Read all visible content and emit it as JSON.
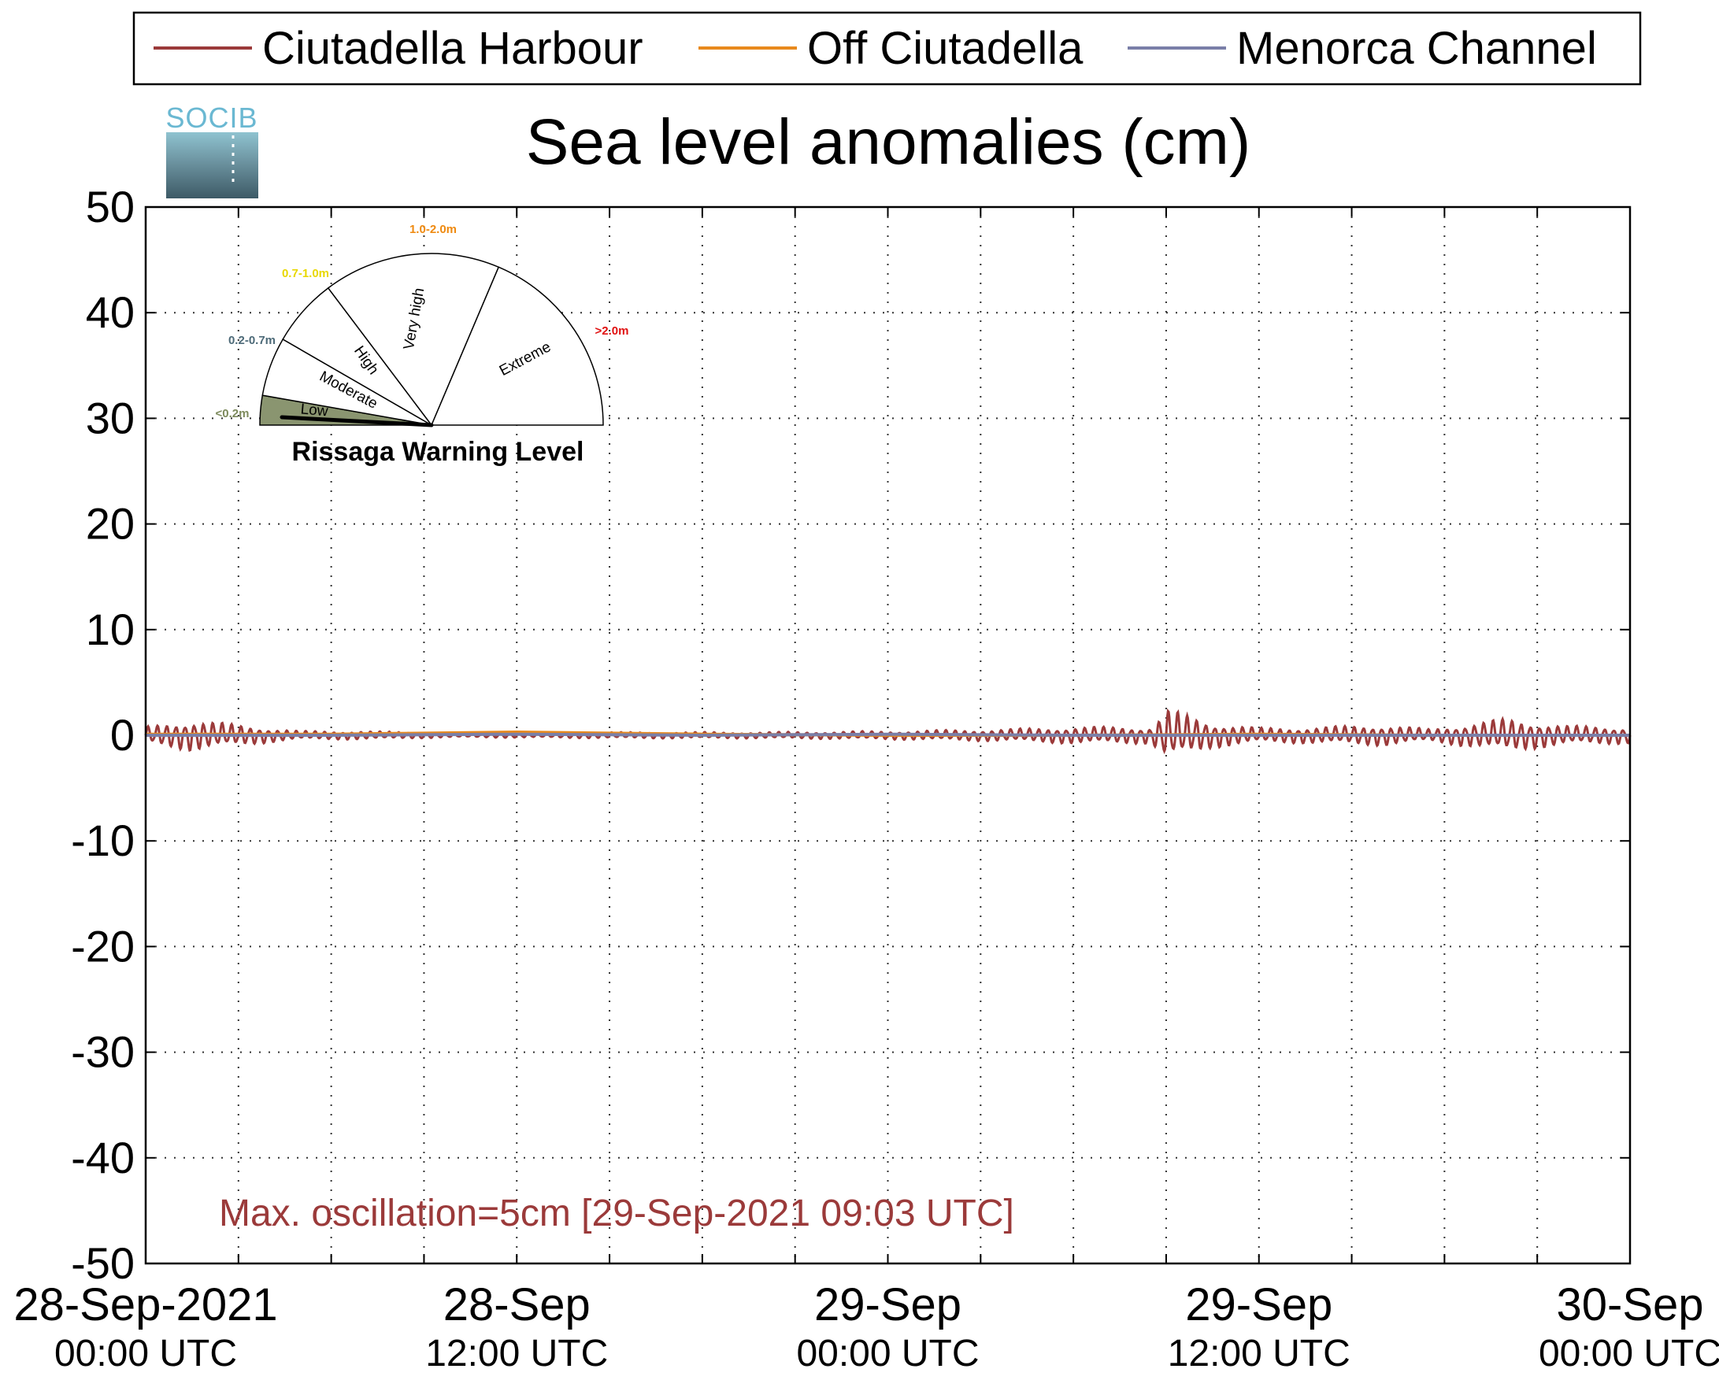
{
  "chart_data": {
    "type": "line",
    "title": "Sea level anomalies (cm)",
    "ylim": [
      -50,
      50
    ],
    "yticks": [
      -50,
      -40,
      -30,
      -20,
      -10,
      0,
      10,
      20,
      30,
      40,
      50
    ],
    "grid": true,
    "legend_position": "top",
    "x_start": "2021-09-28T00:00Z",
    "x_end": "2021-09-30T00:00Z",
    "x_tick_labels": [
      {
        "date": "28-Sep-2021",
        "time": "00:00 UTC"
      },
      {
        "date": "28-Sep",
        "time": "12:00 UTC"
      },
      {
        "date": "29-Sep",
        "time": "00:00 UTC"
      },
      {
        "date": "29-Sep",
        "time": "12:00 UTC"
      },
      {
        "date": "30-Sep",
        "time": "00:00 UTC"
      }
    ],
    "series": [
      {
        "name": "Ciutadella Harbour",
        "color": "#9b3a3a",
        "envelope_cm": [
          {
            "x": "2021-09-28T00:00Z",
            "y": [
              -0.8,
              0.8
            ]
          },
          {
            "x": "2021-09-28T01:30Z",
            "y": [
              -1.5,
              1.5
            ]
          },
          {
            "x": "2021-09-28T03:00Z",
            "y": [
              -1.0,
              1.0
            ]
          },
          {
            "x": "2021-09-28T05:00Z",
            "y": [
              -0.4,
              0.4
            ]
          },
          {
            "x": "2021-09-28T07:00Z",
            "y": [
              -0.4,
              0.4
            ]
          },
          {
            "x": "2021-09-28T10:00Z",
            "y": [
              -0.2,
              0.2
            ]
          },
          {
            "x": "2021-09-28T16:00Z",
            "y": [
              -0.3,
              0.3
            ]
          },
          {
            "x": "2021-09-28T20:00Z",
            "y": [
              -0.3,
              0.3
            ]
          },
          {
            "x": "2021-09-29T00:00Z",
            "y": [
              -0.4,
              0.4
            ]
          },
          {
            "x": "2021-09-29T04:00Z",
            "y": [
              -0.6,
              0.6
            ]
          },
          {
            "x": "2021-09-29T06:00Z",
            "y": [
              -0.8,
              0.8
            ]
          },
          {
            "x": "2021-09-29T08:30Z",
            "y": [
              -0.8,
              0.8
            ]
          },
          {
            "x": "2021-09-29T09:03Z",
            "y": [
              -2.5,
              2.5
            ]
          },
          {
            "x": "2021-09-29T10:30Z",
            "y": [
              -1.2,
              1.2
            ]
          },
          {
            "x": "2021-09-29T12:00Z",
            "y": [
              -0.7,
              0.7
            ]
          },
          {
            "x": "2021-09-29T14:00Z",
            "y": [
              -0.8,
              0.8
            ]
          },
          {
            "x": "2021-09-29T16:00Z",
            "y": [
              -1.0,
              1.0
            ]
          },
          {
            "x": "2021-09-29T17:30Z",
            "y": [
              -0.6,
              0.6
            ]
          },
          {
            "x": "2021-09-29T20:00Z",
            "y": [
              -1.6,
              1.6
            ]
          },
          {
            "x": "2021-09-29T22:00Z",
            "y": [
              -0.9,
              0.9
            ]
          },
          {
            "x": "2021-09-30T00:00Z",
            "y": [
              -0.8,
              0.8
            ]
          }
        ]
      },
      {
        "name": "Off Ciutadella",
        "color": "#e8891d",
        "y_cm": [
          {
            "x": "2021-09-28T00:00Z",
            "y": 0.1
          },
          {
            "x": "2021-09-28T06:00Z",
            "y": 0.1
          },
          {
            "x": "2021-09-28T12:00Z",
            "y": 0.3
          },
          {
            "x": "2021-09-28T18:00Z",
            "y": 0.1
          },
          {
            "x": "2021-09-29T00:00Z",
            "y": 0.0
          },
          {
            "x": "2021-09-29T06:00Z",
            "y": 0.0
          },
          {
            "x": "2021-09-29T12:00Z",
            "y": 0.1
          },
          {
            "x": "2021-09-29T18:00Z",
            "y": 0.0
          },
          {
            "x": "2021-09-30T00:00Z",
            "y": 0.0
          }
        ]
      },
      {
        "name": "Menorca Channel",
        "color": "#7a7fa8",
        "y_cm": [
          {
            "x": "2021-09-28T00:00Z",
            "y": 0.0
          },
          {
            "x": "2021-09-28T06:00Z",
            "y": 0.0
          },
          {
            "x": "2021-09-28T12:00Z",
            "y": 0.1
          },
          {
            "x": "2021-09-28T18:00Z",
            "y": 0.0
          },
          {
            "x": "2021-09-29T00:00Z",
            "y": 0.1
          },
          {
            "x": "2021-09-29T06:00Z",
            "y": 0.0
          },
          {
            "x": "2021-09-29T12:00Z",
            "y": 0.0
          },
          {
            "x": "2021-09-29T18:00Z",
            "y": 0.0
          },
          {
            "x": "2021-09-30T00:00Z",
            "y": 0.0
          }
        ]
      }
    ],
    "annotation": {
      "text": "Max. oscillation=5cm [29-Sep-2021 09:03 UTC]",
      "color": "#9b3a3a"
    }
  },
  "logo": {
    "text": "SOCIB"
  },
  "rissaga_gauge": {
    "title": "Rissaga Warning Level",
    "current_level": "Low",
    "levels": [
      {
        "label": "Low",
        "range": "<0.2m",
        "range_color": "#7d8a5c",
        "fill": "#8a9570"
      },
      {
        "label": "Moderate",
        "range": "0.2-0.7m",
        "range_color": "#4d6a78",
        "fill": "#ffffff"
      },
      {
        "label": "High",
        "range": "0.7-1.0m",
        "range_color": "#e8d800",
        "fill": "#ffffff"
      },
      {
        "label": "Very high",
        "range": "1.0-2.0m",
        "range_color": "#ef8a10",
        "fill": "#ffffff"
      },
      {
        "label": "Extreme",
        "range": ">2.0m",
        "range_color": "#e01010",
        "fill": "#ffffff"
      }
    ]
  }
}
